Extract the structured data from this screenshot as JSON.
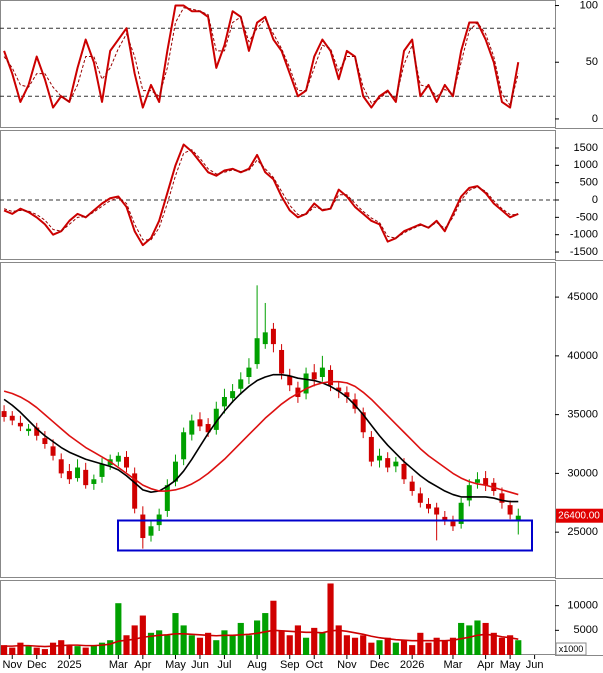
{
  "chart_data": [
    {
      "type": "line",
      "ylim": [
        -8,
        104
      ],
      "yticks": [
        0,
        50,
        100
      ],
      "levels": [
        80,
        20
      ],
      "series": [
        {
          "color": "#cc0000",
          "width": 2,
          "dash": false,
          "values": [
            60,
            40,
            15,
            30,
            55,
            35,
            10,
            20,
            15,
            45,
            70,
            50,
            15,
            60,
            70,
            80,
            40,
            10,
            30,
            15,
            60,
            100,
            100,
            95,
            95,
            90,
            45,
            65,
            95,
            90,
            60,
            85,
            90,
            70,
            60,
            40,
            20,
            25,
            55,
            70,
            60,
            35,
            60,
            55,
            20,
            10,
            20,
            25,
            15,
            60,
            70,
            20,
            30,
            15,
            30,
            20,
            60,
            85,
            85,
            70,
            50,
            15,
            10,
            50,
            null,
            null,
            null,
            null
          ]
        },
        {
          "color": "#990000",
          "width": 1,
          "dash": true,
          "values": [
            55,
            45,
            30,
            28,
            40,
            40,
            28,
            20,
            15,
            30,
            55,
            55,
            35,
            45,
            62,
            75,
            55,
            25,
            25,
            20,
            45,
            85,
            98,
            97,
            95,
            92,
            60,
            60,
            85,
            90,
            68,
            80,
            88,
            75,
            62,
            45,
            25,
            25,
            45,
            65,
            62,
            42,
            55,
            55,
            28,
            14,
            18,
            24,
            18,
            48,
            65,
            30,
            28,
            20,
            26,
            22,
            50,
            78,
            85,
            75,
            55,
            22,
            12,
            40,
            null,
            null,
            null,
            null
          ]
        }
      ]
    },
    {
      "type": "line",
      "ylim": [
        -1730,
        1990
      ],
      "yticks": [
        -1500,
        -1000,
        -500,
        0,
        500,
        1000,
        1500
      ],
      "levels": [
        0
      ],
      "series": [
        {
          "color": "#cc0000",
          "width": 2,
          "dash": false,
          "values": [
            -300,
            -400,
            -250,
            -350,
            -500,
            -700,
            -1000,
            -900,
            -600,
            -400,
            -500,
            -300,
            -100,
            50,
            100,
            -200,
            -900,
            -1300,
            -1100,
            -600,
            200,
            1000,
            1600,
            1400,
            1100,
            800,
            700,
            850,
            900,
            800,
            900,
            1300,
            800,
            600,
            100,
            -300,
            -500,
            -400,
            -100,
            -300,
            -250,
            300,
            100,
            -200,
            -400,
            -600,
            -700,
            -1200,
            -1100,
            -900,
            -800,
            -700,
            -800,
            -600,
            -900,
            -400,
            100,
            350,
            400,
            200,
            -100,
            -300,
            -500,
            -400,
            null,
            null,
            null,
            null
          ]
        },
        {
          "color": "#990000",
          "width": 1,
          "dash": true,
          "values": [
            -250,
            -330,
            -300,
            -320,
            -420,
            -580,
            -850,
            -900,
            -700,
            -500,
            -480,
            -350,
            -180,
            -20,
            60,
            -100,
            -700,
            -1150,
            -1150,
            -800,
            -100,
            700,
            1350,
            1450,
            1200,
            900,
            750,
            800,
            870,
            820,
            860,
            1150,
            900,
            650,
            250,
            -150,
            -420,
            -420,
            -200,
            -270,
            -250,
            150,
            150,
            -100,
            -330,
            -520,
            -650,
            -1050,
            -1100,
            -950,
            -830,
            -730,
            -780,
            -650,
            -820,
            -500,
            0,
            280,
            380,
            250,
            -20,
            -250,
            -420,
            -420,
            null,
            null,
            null,
            null
          ]
        }
      ]
    },
    {
      "type": "candlestick",
      "ylim": [
        21100,
        47900
      ],
      "yticks": [
        25000,
        30000,
        35000,
        40000,
        45000
      ],
      "up_color": "#00a000",
      "down_color": "#d00000",
      "open": [
        35300,
        34900,
        34300,
        33600,
        33900,
        33000,
        32300,
        31200,
        30200,
        29600,
        30300,
        29100,
        29700,
        30700,
        31000,
        31400,
        30000,
        26500,
        24700,
        25600,
        26800,
        29300,
        31200,
        33300,
        34600,
        34200,
        33700,
        35700,
        36400,
        37200,
        38200,
        39300,
        41000,
        42300,
        40500,
        38300,
        37300,
        36800,
        38600,
        38200,
        38800,
        37300,
        36900,
        36300,
        35200,
        33100,
        31100,
        31300,
        30600,
        30800,
        29300,
        28300,
        27400,
        27100,
        26300,
        25900,
        25700,
        27700,
        29200,
        29600,
        29200,
        28300,
        27300,
        26000,
        null,
        null,
        null,
        null
      ],
      "high": [
        35800,
        35300,
        34900,
        34200,
        34300,
        33600,
        32900,
        31700,
        30800,
        31200,
        30900,
        29900,
        31300,
        31600,
        31800,
        31900,
        30500,
        27200,
        26000,
        27000,
        29500,
        31600,
        33900,
        35000,
        35200,
        34700,
        36100,
        37200,
        37600,
        38600,
        39800,
        46000,
        44500,
        42800,
        41000,
        38900,
        37800,
        39000,
        39300,
        40000,
        39200,
        37800,
        37400,
        36800,
        35600,
        33600,
        32100,
        31800,
        31400,
        31300,
        29800,
        28800,
        27900,
        27500,
        26800,
        26400,
        27900,
        29500,
        30100,
        30200,
        29600,
        28800,
        27700,
        27000,
        null,
        null,
        null,
        null
      ],
      "low": [
        34400,
        34100,
        33600,
        33200,
        32800,
        32100,
        31100,
        29600,
        29100,
        29300,
        28700,
        28600,
        29200,
        30300,
        30600,
        30100,
        26600,
        23600,
        24200,
        25100,
        26300,
        28900,
        30700,
        32800,
        33600,
        33100,
        33300,
        35100,
        36000,
        36700,
        37600,
        38900,
        40600,
        40300,
        38000,
        37000,
        36000,
        36300,
        37400,
        37800,
        37000,
        36400,
        36000,
        35100,
        33000,
        30600,
        30500,
        30100,
        30100,
        29100,
        28100,
        27100,
        26600,
        24300,
        25600,
        25100,
        25300,
        27200,
        28700,
        28500,
        28100,
        27000,
        26100,
        24800,
        null,
        null,
        null,
        null
      ],
      "close": [
        34800,
        34500,
        34000,
        33800,
        33200,
        32500,
        31500,
        30000,
        29500,
        30500,
        29000,
        29500,
        30800,
        31200,
        31500,
        30500,
        27000,
        24500,
        25500,
        26500,
        29000,
        31000,
        33500,
        34500,
        34000,
        33500,
        35500,
        36500,
        37000,
        38000,
        39000,
        41500,
        42000,
        41000,
        38500,
        37500,
        36500,
        38500,
        38000,
        39000,
        37500,
        37000,
        36500,
        35500,
        33500,
        31000,
        31500,
        30500,
        31000,
        29500,
        28500,
        27500,
        27000,
        26500,
        26000,
        25500,
        27500,
        29000,
        29500,
        29000,
        28500,
        27500,
        26500,
        26400,
        null,
        null,
        null,
        null
      ],
      "last_price": {
        "value": 26400,
        "label": "26400.00"
      },
      "series": [
        {
          "color": "#000000",
          "width": 1.6,
          "dash": false,
          "values": [
            36300,
            35800,
            35200,
            34500,
            33800,
            33200,
            32700,
            32200,
            31800,
            31500,
            31200,
            31000,
            30800,
            30600,
            30300,
            29800,
            29200,
            28600,
            28400,
            28500,
            28900,
            29400,
            30200,
            31200,
            32300,
            33400,
            34400,
            35300,
            36100,
            36800,
            37400,
            37900,
            38200,
            38400,
            38400,
            38300,
            38100,
            38000,
            37900,
            37700,
            37400,
            37000,
            36500,
            35800,
            35000,
            34100,
            33200,
            32400,
            31700,
            31000,
            30400,
            29800,
            29300,
            28900,
            28500,
            28200,
            28000,
            28000,
            28000,
            28000,
            27900,
            27700,
            27600,
            27600,
            null,
            null,
            null,
            null
          ]
        },
        {
          "color": "#dd1111",
          "width": 1.6,
          "dash": false,
          "values": [
            37000,
            36800,
            36500,
            36100,
            35600,
            35000,
            34400,
            33800,
            33200,
            32700,
            32200,
            31800,
            31400,
            31000,
            30500,
            30000,
            29500,
            29000,
            28700,
            28500,
            28500,
            28600,
            28800,
            29100,
            29500,
            30000,
            30600,
            31200,
            31900,
            32600,
            33300,
            34000,
            34700,
            35300,
            35900,
            36400,
            36800,
            37200,
            37500,
            37700,
            37800,
            37800,
            37700,
            37400,
            36900,
            36300,
            35600,
            34900,
            34200,
            33500,
            32800,
            32100,
            31500,
            31000,
            30500,
            30000,
            29600,
            29300,
            29100,
            29000,
            28800,
            28600,
            28400,
            28200,
            null,
            null,
            null,
            null
          ]
        }
      ]
    },
    {
      "type": "bar",
      "ylim": [
        0,
        15000
      ],
      "yticks": [
        5000,
        10000
      ],
      "unit": "x1000",
      "categories": [
        null,
        "Nov",
        null,
        null,
        "Dec",
        null,
        null,
        null,
        "2025",
        null,
        null,
        null,
        null,
        null,
        "Mar",
        null,
        null,
        "Apr",
        null,
        null,
        null,
        "May",
        null,
        null,
        "Jun",
        null,
        null,
        "Jul",
        null,
        null,
        null,
        "Aug",
        null,
        null,
        null,
        "Sep",
        null,
        null,
        "Oct",
        null,
        null,
        null,
        "Nov",
        null,
        null,
        null,
        "Dec",
        null,
        null,
        null,
        "2026",
        null,
        null,
        null,
        null,
        "Mar",
        null,
        null,
        null,
        "Apr",
        null,
        null,
        "May",
        null,
        null,
        "Jun",
        null,
        null
      ],
      "values": [
        2000,
        1500,
        2500,
        1800,
        1500,
        1200,
        2500,
        3000,
        2000,
        1800,
        1500,
        2000,
        2500,
        3000,
        10500,
        4000,
        6000,
        8000,
        4500,
        5000,
        4000,
        8500,
        6000,
        4000,
        3500,
        4500,
        3000,
        5000,
        4000,
        6500,
        4000,
        7000,
        8500,
        11000,
        5000,
        4000,
        6000,
        3500,
        5500,
        4500,
        14500,
        6000,
        4000,
        3500,
        4000,
        2500,
        3000,
        3500,
        2500,
        3000,
        2000,
        4500,
        2500,
        3500,
        3000,
        3500,
        6500,
        6000,
        7000,
        6500,
        4500,
        3500,
        4000,
        3000,
        null,
        null,
        null,
        null
      ],
      "series": [
        {
          "color": "#cc0000",
          "width": 1.6,
          "dash": false,
          "values": [
            1800,
            1800,
            1900,
            1900,
            1800,
            1700,
            1800,
            1900,
            2000,
            2000,
            1900,
            1900,
            2000,
            2200,
            2800,
            3000,
            3200,
            3600,
            3800,
            4000,
            4100,
            4300,
            4300,
            4200,
            4100,
            4000,
            3900,
            4000,
            4000,
            4100,
            4200,
            4400,
            4700,
            5000,
            4900,
            4800,
            4700,
            4600,
            4600,
            4500,
            4900,
            5000,
            4800,
            4500,
            4200,
            3800,
            3500,
            3300,
            3100,
            3000,
            2900,
            2900,
            2900,
            2900,
            2900,
            3000,
            3300,
            3600,
            4000,
            4200,
            4000,
            3700,
            3500,
            3200,
            null,
            null,
            null,
            null
          ]
        }
      ]
    }
  ]
}
